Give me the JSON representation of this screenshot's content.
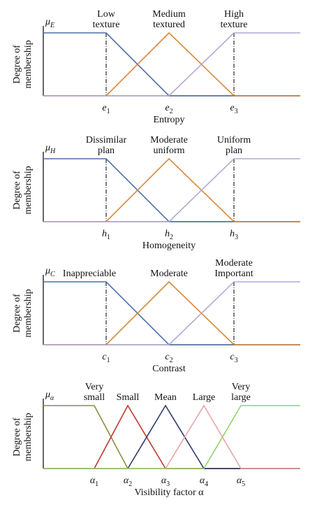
{
  "panels": [
    {
      "y_symbol": "μ",
      "y_subscript": "E",
      "y_label": [
        "Degree of",
        "membership"
      ],
      "sets": [
        [
          "Low",
          "texture"
        ],
        [
          "Medium",
          "textured"
        ],
        [
          "High",
          "texture"
        ]
      ],
      "points": [
        {
          "symbol": "e",
          "subscript": "1"
        },
        {
          "symbol": "e",
          "subscript": "2"
        },
        {
          "symbol": "e",
          "subscript": "3"
        }
      ],
      "x_label": "Entropy"
    },
    {
      "y_symbol": "μ",
      "y_subscript": "H",
      "y_label": [
        "Degree of",
        "membership"
      ],
      "sets": [
        [
          "Dissimilar",
          "plan"
        ],
        [
          "Moderate",
          "uniform"
        ],
        [
          "Uniform",
          "plan"
        ]
      ],
      "points": [
        {
          "symbol": "h",
          "subscript": "1"
        },
        {
          "symbol": "h",
          "subscript": "2"
        },
        {
          "symbol": "h",
          "subscript": "3"
        }
      ],
      "x_label": "Homogeneity"
    },
    {
      "y_symbol": "μ",
      "y_subscript": "C",
      "y_label": [
        "Degree of",
        "membership"
      ],
      "sets": [
        [
          "Inappreciable"
        ],
        [
          "Moderate"
        ],
        [
          "Moderate",
          "Important"
        ]
      ],
      "points": [
        {
          "symbol": "c",
          "subscript": "1"
        },
        {
          "symbol": "c",
          "subscript": "2"
        },
        {
          "symbol": "c",
          "subscript": "3"
        }
      ],
      "x_label": "Contrast"
    },
    {
      "y_symbol": "μ",
      "y_subscript": "α",
      "y_label": [
        "Degree of",
        "membership"
      ],
      "sets": [
        [
          "Very",
          "small"
        ],
        [
          "Small"
        ],
        [
          "Mean"
        ],
        [
          "Large"
        ],
        [
          "Very",
          "large"
        ]
      ],
      "points": [
        {
          "symbol": "α",
          "subscript": "1"
        },
        {
          "symbol": "α",
          "subscript": "2"
        },
        {
          "symbol": "α",
          "subscript": "3"
        },
        {
          "symbol": "α",
          "subscript": "4"
        },
        {
          "symbol": "α",
          "subscript": "5"
        }
      ],
      "x_label": "Visibility factor α"
    }
  ]
}
